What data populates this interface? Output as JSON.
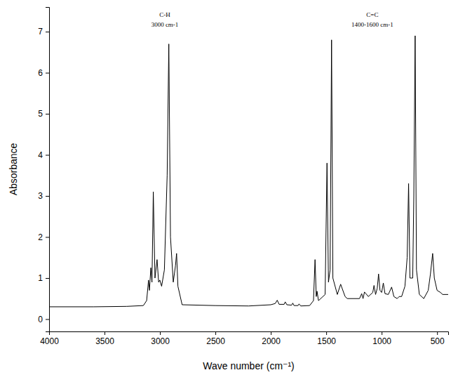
{
  "chart_data": {
    "type": "line",
    "x_label": "Wave number (cm⁻¹)",
    "y_label": "Absorbance",
    "annotations": [
      {
        "text": "C-H",
        "subtext": "3000 cm-1"
      },
      {
        "text": "C=C",
        "subtext": "1400-1600 cm-1"
      }
    ],
    "x": [
      4000,
      3600,
      3300,
      3150,
      3120,
      3103,
      3095,
      3082,
      3072,
      3060,
      3045,
      3026,
      3012,
      3001,
      2985,
      2960,
      2935,
      2920,
      2905,
      2880,
      2860,
      2850,
      2838,
      2800,
      2500,
      2200,
      2000,
      1960,
      1942,
      1925,
      1880,
      1870,
      1855,
      1812,
      1802,
      1790,
      1755,
      1745,
      1730,
      1650,
      1615,
      1601,
      1590,
      1583,
      1570,
      1510,
      1493,
      1480,
      1465,
      1452,
      1440,
      1400,
      1370,
      1330,
      1310,
      1200,
      1180,
      1168,
      1155,
      1120,
      1080,
      1069,
      1055,
      1040,
      1028,
      1015,
      1000,
      985,
      970,
      940,
      910,
      890,
      860,
      842,
      820,
      790,
      770,
      757,
      745,
      720,
      710,
      698,
      686,
      660,
      620,
      580,
      560,
      540,
      525,
      500,
      470,
      450,
      400
    ],
    "values": [
      0.3,
      0.3,
      0.31,
      0.33,
      0.45,
      0.95,
      0.7,
      1.25,
      0.9,
      3.1,
      1.0,
      1.45,
      0.9,
      0.95,
      0.8,
      1.2,
      3.5,
      6.7,
      2.0,
      0.9,
      1.3,
      1.6,
      0.8,
      0.35,
      0.33,
      0.32,
      0.35,
      0.38,
      0.46,
      0.36,
      0.36,
      0.42,
      0.35,
      0.34,
      0.39,
      0.33,
      0.33,
      0.37,
      0.32,
      0.33,
      0.45,
      1.45,
      0.55,
      0.68,
      0.45,
      0.6,
      3.8,
      0.9,
      1.2,
      6.8,
      1.0,
      0.6,
      0.85,
      0.55,
      0.5,
      0.5,
      0.62,
      0.5,
      0.66,
      0.55,
      0.65,
      0.82,
      0.6,
      0.75,
      1.1,
      0.7,
      0.65,
      0.88,
      0.62,
      0.6,
      0.78,
      0.55,
      0.5,
      0.55,
      0.55,
      0.8,
      1.5,
      3.3,
      1.0,
      1.0,
      3.0,
      6.9,
      1.2,
      0.6,
      0.5,
      0.7,
      1.1,
      1.6,
      1.0,
      0.7,
      0.65,
      0.6,
      0.6
    ],
    "color": "#000000",
    "xlim": [
      4000,
      400
    ],
    "xticks": [
      4000,
      3500,
      3000,
      2500,
      2000,
      1500,
      1000,
      500
    ],
    "ylim": [
      -0.3,
      7.6
    ],
    "yticks": [
      0,
      1,
      2,
      3,
      4,
      5,
      6,
      7
    ],
    "grid": false
  }
}
